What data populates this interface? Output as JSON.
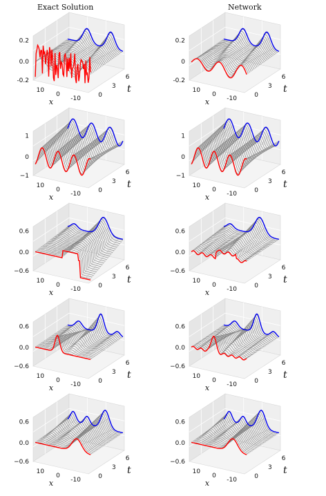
{
  "column_titles": [
    "Exact Solution",
    "Network"
  ],
  "colors": {
    "surface_mesh": "#7a7a7a",
    "initial_curve": "#ff0000",
    "final_curve": "#0000ee",
    "pane_xwall": "#e6e6e6",
    "pane_ywall": "#efefef",
    "pane_floor": "#f4f4f4"
  },
  "chart_data": [
    {
      "type": "surface3d",
      "row": 1,
      "column": "Exact Solution",
      "xlabel": "x",
      "ylabel": "t",
      "x_ticks": [
        "10",
        "0",
        "-10"
      ],
      "t_ticks": [
        "0",
        "3",
        "6"
      ],
      "z_ticks": [
        "0.2",
        "0.0",
        "-0.2"
      ],
      "xlim": [
        -15,
        15
      ],
      "tlim": [
        0,
        6
      ],
      "zlim": [
        -0.25,
        0.25
      ],
      "initial": "noise",
      "amp": 0.2,
      "final": "wave2",
      "grid": true
    },
    {
      "type": "surface3d",
      "row": 1,
      "column": "Network",
      "xlabel": "x",
      "ylabel": "t",
      "x_ticks": [
        "10",
        "0",
        "-10"
      ],
      "t_ticks": [
        "0",
        "3",
        "6"
      ],
      "z_ticks": [
        "0.2",
        "0",
        "-0.2"
      ],
      "xlim": [
        -15,
        15
      ],
      "tlim": [
        0,
        6
      ],
      "zlim": [
        -0.25,
        0.25
      ],
      "initial": "wave3",
      "amp": 0.2,
      "final": "wave2",
      "grid": true
    },
    {
      "type": "surface3d",
      "row": 2,
      "column": "Exact Solution",
      "xlabel": "x",
      "ylabel": "t",
      "x_ticks": [
        "10",
        "0",
        "-10"
      ],
      "t_ticks": [
        "0",
        "3",
        "6"
      ],
      "z_ticks": [
        "1",
        "0",
        "−1"
      ],
      "xlim": [
        -15,
        15
      ],
      "tlim": [
        0,
        6
      ],
      "zlim": [
        -1,
        1.2
      ],
      "initial": "wave4",
      "amp": 0.9,
      "final": "wave4",
      "grid": true
    },
    {
      "type": "surface3d",
      "row": 2,
      "column": "Network",
      "xlabel": "x",
      "ylabel": "t",
      "x_ticks": [
        "10",
        "0",
        "-10"
      ],
      "t_ticks": [
        "0",
        "3",
        "6"
      ],
      "z_ticks": [
        "1",
        "0",
        "−1"
      ],
      "xlim": [
        -15,
        15
      ],
      "tlim": [
        0,
        6
      ],
      "zlim": [
        -1,
        1.2
      ],
      "initial": "wave4",
      "amp": 0.9,
      "final": "wave4",
      "grid": true
    },
    {
      "type": "surface3d",
      "row": 3,
      "column": "Exact Solution",
      "xlabel": "x",
      "ylabel": "t",
      "x_ticks": [
        "10",
        "0",
        "-10"
      ],
      "t_ticks": [
        "0",
        "3",
        "6"
      ],
      "z_ticks": [
        "0.6",
        "0.0",
        "−0.6"
      ],
      "xlim": [
        -15,
        15
      ],
      "tlim": [
        0,
        6
      ],
      "zlim": [
        -0.6,
        0.6
      ],
      "initial": "step",
      "amp": 0.5,
      "final": "peak_left",
      "grid": true
    },
    {
      "type": "surface3d",
      "row": 3,
      "column": "Network",
      "xlabel": "x",
      "ylabel": "t",
      "x_ticks": [
        "10",
        "0",
        "-10"
      ],
      "t_ticks": [
        "0",
        "3",
        "6"
      ],
      "z_ticks": [
        "0.6",
        "0.0",
        "−0.6"
      ],
      "xlim": [
        -15,
        15
      ],
      "tlim": [
        0,
        6
      ],
      "zlim": [
        -0.6,
        0.6
      ],
      "initial": "step_smooth",
      "amp": 0.5,
      "final": "peak_left",
      "grid": true
    },
    {
      "type": "surface3d",
      "row": 4,
      "column": "Exact Solution",
      "xlabel": "x",
      "ylabel": "t",
      "x_ticks": [
        "10",
        "0",
        "-10"
      ],
      "t_ticks": [
        "0",
        "3",
        "6"
      ],
      "z_ticks": [
        "0.6",
        "0.0",
        "−0.6"
      ],
      "xlim": [
        -15,
        15
      ],
      "tlim": [
        0,
        6
      ],
      "zlim": [
        -0.6,
        0.6
      ],
      "initial": "pulse",
      "amp": 0.55,
      "final": "peaks2",
      "grid": true
    },
    {
      "type": "surface3d",
      "row": 4,
      "column": "Network",
      "xlabel": "x",
      "ylabel": "t",
      "x_ticks": [
        "10",
        "0",
        "-10"
      ],
      "t_ticks": [
        "0",
        "3",
        "6"
      ],
      "z_ticks": [
        "0.6",
        "0.0",
        "−0.6"
      ],
      "xlim": [
        -15,
        15
      ],
      "tlim": [
        0,
        6
      ],
      "zlim": [
        -0.6,
        0.6
      ],
      "initial": "pulse_noisy",
      "amp": 0.55,
      "final": "peaks2",
      "grid": true
    },
    {
      "type": "surface3d",
      "row": 5,
      "column": "Exact Solution",
      "xlabel": "x",
      "ylabel": "t",
      "x_ticks": [
        "10",
        "0",
        "-10"
      ],
      "t_ticks": [
        "0",
        "3",
        "6"
      ],
      "z_ticks": [
        "0.6",
        "0.0",
        "−0.6"
      ],
      "xlim": [
        -15,
        15
      ],
      "tlim": [
        0,
        6
      ],
      "zlim": [
        -0.6,
        0.6
      ],
      "initial": "bump_right",
      "amp": 0.4,
      "final": "peaks3",
      "grid": true
    },
    {
      "type": "surface3d",
      "row": 5,
      "column": "Network",
      "xlabel": "x",
      "ylabel": "t",
      "x_ticks": [
        "10",
        "0",
        "-10"
      ],
      "t_ticks": [
        "0",
        "3",
        "6"
      ],
      "z_ticks": [
        "0.6",
        "0.0",
        "−0.6"
      ],
      "xlim": [
        -15,
        15
      ],
      "tlim": [
        0,
        6
      ],
      "zlim": [
        -0.6,
        0.6
      ],
      "initial": "bump_right",
      "amp": 0.4,
      "final": "peaks3",
      "grid": true
    }
  ]
}
